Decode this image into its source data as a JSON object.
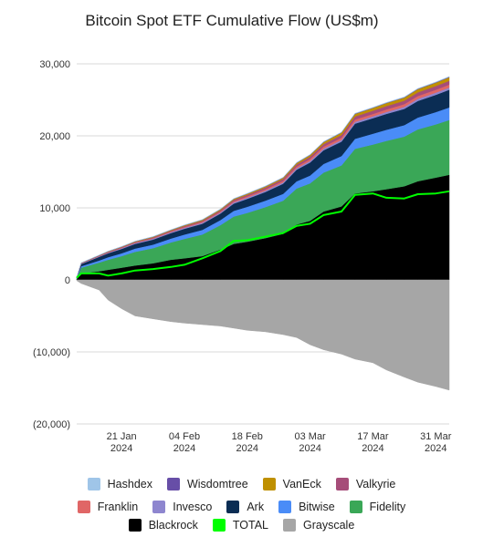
{
  "chart_data": {
    "type": "area",
    "title": "Bitcoin Spot ETF Cumulative Flow (US$m)",
    "ylim": [
      -20000,
      30000
    ],
    "y_ticks": [
      "30,000",
      "20,000",
      "10,000",
      "0",
      "(10,000)",
      "(20,000)"
    ],
    "x_ticks": [
      {
        "day": "21 Jan",
        "year": "2024"
      },
      {
        "day": "04 Feb",
        "year": "2024"
      },
      {
        "day": "18 Feb",
        "year": "2024"
      },
      {
        "day": "03 Mar",
        "year": "2024"
      },
      {
        "day": "17 Mar",
        "year": "2024"
      },
      {
        "day": "31 Mar",
        "year": "2024"
      }
    ],
    "x_dates": [
      "2024-01-11",
      "2024-01-12",
      "2024-01-16",
      "2024-01-18",
      "2024-01-21",
      "2024-01-24",
      "2024-01-28",
      "2024-02-01",
      "2024-02-04",
      "2024-02-08",
      "2024-02-12",
      "2024-02-15",
      "2024-02-18",
      "2024-02-22",
      "2024-02-26",
      "2024-02-29",
      "2024-03-03",
      "2024-03-06",
      "2024-03-10",
      "2024-03-13",
      "2024-03-17",
      "2024-03-20",
      "2024-03-24",
      "2024-03-27",
      "2024-03-31",
      "2024-04-03"
    ],
    "series": [
      {
        "name": "Blackrock",
        "color": "#000000",
        "values": [
          100,
          900,
          1200,
          1400,
          1700,
          2000,
          2300,
          2800,
          3000,
          3300,
          4200,
          5000,
          5300,
          5800,
          6400,
          7700,
          8200,
          9500,
          10200,
          12000,
          12300,
          12600,
          13000,
          13700,
          14200,
          14600
        ]
      },
      {
        "name": "Fidelity",
        "color": "#3aa757",
        "values": [
          100,
          800,
          1200,
          1400,
          1600,
          1900,
          2100,
          2400,
          2700,
          3000,
          3400,
          3800,
          4000,
          4300,
          4600,
          5000,
          5200,
          5400,
          5700,
          6200,
          6500,
          6700,
          6900,
          7200,
          7400,
          7600
        ]
      },
      {
        "name": "Bitwise",
        "color": "#4a8cf7",
        "values": [
          50,
          200,
          300,
          350,
          400,
          450,
          500,
          550,
          600,
          650,
          700,
          800,
          850,
          900,
          950,
          1000,
          1100,
          1200,
          1300,
          1400,
          1500,
          1550,
          1600,
          1650,
          1700,
          1750
        ]
      },
      {
        "name": "Ark",
        "color": "#0b2d54",
        "values": [
          50,
          300,
          500,
          550,
          600,
          650,
          700,
          750,
          800,
          850,
          900,
          1000,
          1100,
          1200,
          1400,
          1600,
          1800,
          1900,
          2000,
          2100,
          2150,
          2200,
          2250,
          2300,
          2400,
          2450
        ]
      },
      {
        "name": "Invesco",
        "color": "#8e86cf",
        "values": [
          20,
          60,
          80,
          90,
          100,
          110,
          120,
          130,
          140,
          150,
          160,
          170,
          180,
          190,
          200,
          210,
          220,
          230,
          240,
          250,
          260,
          270,
          280,
          290,
          300,
          310
        ]
      },
      {
        "name": "Franklin",
        "color": "#e06666",
        "values": [
          10,
          30,
          40,
          50,
          60,
          70,
          80,
          90,
          100,
          110,
          120,
          140,
          160,
          180,
          200,
          220,
          250,
          270,
          290,
          310,
          330,
          350,
          370,
          390,
          400,
          410
        ]
      },
      {
        "name": "Valkyrie",
        "color": "#a64d79",
        "values": [
          10,
          40,
          60,
          70,
          80,
          90,
          100,
          120,
          140,
          160,
          180,
          200,
          220,
          240,
          260,
          300,
          330,
          360,
          400,
          430,
          450,
          470,
          490,
          510,
          520,
          530
        ]
      },
      {
        "name": "VanEck",
        "color": "#bf9000",
        "values": [
          10,
          30,
          40,
          50,
          60,
          70,
          80,
          90,
          100,
          110,
          120,
          130,
          140,
          150,
          170,
          200,
          230,
          270,
          310,
          350,
          380,
          400,
          420,
          440,
          460,
          480
        ]
      },
      {
        "name": "Wisdomtree",
        "color": "#674ea7",
        "values": [
          0,
          5,
          10,
          12,
          14,
          16,
          18,
          20,
          22,
          24,
          26,
          28,
          30,
          32,
          34,
          36,
          38,
          40,
          42,
          44,
          46,
          48,
          50,
          52,
          54,
          56
        ]
      },
      {
        "name": "Hashdex",
        "color": "#9fc5e8",
        "values": [
          0,
          5,
          8,
          10,
          12,
          14,
          16,
          18,
          20,
          22,
          24,
          26,
          28,
          30,
          32,
          34,
          36,
          38,
          40,
          42,
          44,
          46,
          48,
          50,
          52,
          54
        ]
      },
      {
        "name": "Grayscale",
        "color": "#a6a6a6",
        "values": [
          -100,
          -500,
          -1400,
          -2800,
          -4000,
          -5000,
          -5400,
          -5800,
          -6000,
          -6200,
          -6400,
          -6700,
          -7000,
          -7200,
          -7600,
          -8000,
          -9000,
          -9700,
          -10300,
          -11000,
          -11500,
          -12500,
          -13500,
          -14200,
          -14800,
          -15300
        ]
      },
      {
        "name": "TOTAL",
        "color": "#00ff00",
        "line": true,
        "values": [
          300,
          900,
          900,
          600,
          900,
          1300,
          1500,
          1800,
          2100,
          3000,
          4000,
          5400,
          5500,
          6000,
          6500,
          7500,
          7800,
          9000,
          9500,
          11800,
          12000,
          11400,
          11300,
          11900,
          12000,
          12300
        ]
      }
    ],
    "legend_rows": [
      [
        "Hashdex",
        "Wisdomtree",
        "VanEck",
        "Valkyrie"
      ],
      [
        "Franklin",
        "Invesco",
        "Ark",
        "Bitwise",
        "Fidelity"
      ],
      [
        "Blackrock",
        "TOTAL",
        "Grayscale"
      ]
    ],
    "legend_placement": "bottom",
    "grid": true
  }
}
